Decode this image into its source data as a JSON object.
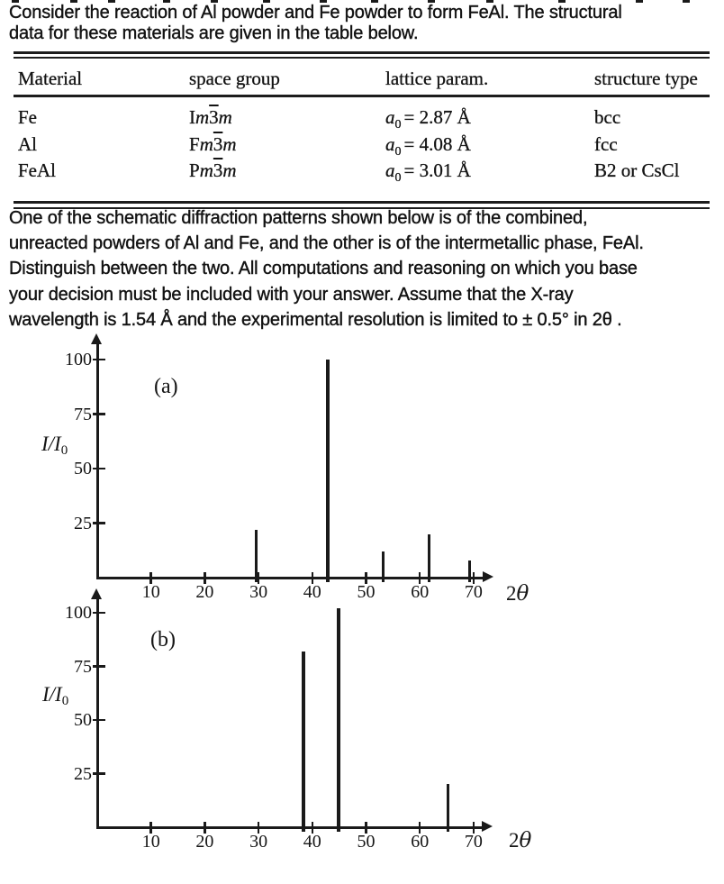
{
  "page": {
    "heading_lines": [
      "Consider the reaction of Al powder and Fe powder to form FeAl. The structural",
      "data for these materials are given in the table below."
    ],
    "paragraph_lines": [
      "One of the schematic diffraction patterns shown below is of the combined,",
      "unreacted powders of Al and Fe, and the other is of the intermetallic phase, FeAl.",
      "Distinguish between the two. All computations and reasoning on which you base",
      "your decision must be included with your answer. Assume that the X-ray",
      "wavelength is 1.54 Å and the experimental resolution is limited to ± 0.5° in 2θ ."
    ]
  },
  "table": {
    "columns": [
      "Material",
      "space group",
      "lattice param.",
      "structure type"
    ],
    "rows": [
      {
        "material": "Fe",
        "sg_pre": "I",
        "sg_m1": "m",
        "sg_bar": "3",
        "sg_m2": "m",
        "param_var": "a",
        "param_sub": "0",
        "param_rest": "= 2.87 Å",
        "structure": "bcc"
      },
      {
        "material": "Al",
        "sg_pre": "F",
        "sg_m1": "m",
        "sg_bar": "3",
        "sg_m2": "m",
        "param_var": "a",
        "param_sub": "0",
        "param_rest": "= 4.08 Å",
        "structure": "fcc"
      },
      {
        "material": "FeAl",
        "sg_pre": "P",
        "sg_m1": "m",
        "sg_bar": "3",
        "sg_m2": "m",
        "param_var": "a",
        "param_sub": "0",
        "param_rest": "= 3.01 Å",
        "structure": "B2 or CsCl"
      }
    ]
  },
  "chart_data": [
    {
      "id": "a",
      "type": "bar",
      "label": "(a)",
      "ylabel": "I/I0",
      "xlabel": "2θ",
      "x_ticks": [
        10,
        20,
        30,
        40,
        50,
        60,
        70
      ],
      "y_ticks": [
        25,
        50,
        75,
        100
      ],
      "xlim": [
        0,
        73
      ],
      "ylim": [
        0,
        108
      ],
      "grid": false,
      "legend": null,
      "peaks": [
        {
          "two_theta": 29.5,
          "intensity": 22
        },
        {
          "two_theta": 42.9,
          "intensity": 100
        },
        {
          "two_theta": 53.1,
          "intensity": 12
        },
        {
          "two_theta": 61.7,
          "intensity": 20
        },
        {
          "two_theta": 69.3,
          "intensity": 8
        }
      ]
    },
    {
      "id": "b",
      "type": "bar",
      "label": "(b)",
      "ylabel": "I/I0",
      "xlabel": "2θ",
      "x_ticks": [
        10,
        20,
        30,
        40,
        50,
        60,
        70
      ],
      "y_ticks": [
        25,
        50,
        75,
        100
      ],
      "xlim": [
        0,
        73
      ],
      "ylim": [
        0,
        108
      ],
      "grid": false,
      "legend": null,
      "peaks": [
        {
          "two_theta": 38.3,
          "intensity": 82
        },
        {
          "two_theta": 44.8,
          "intensity": 102
        },
        {
          "two_theta": 65.3,
          "intensity": 20
        }
      ]
    }
  ],
  "colors": {
    "ink": "#1a1a1a",
    "paper": "#ffffff"
  }
}
